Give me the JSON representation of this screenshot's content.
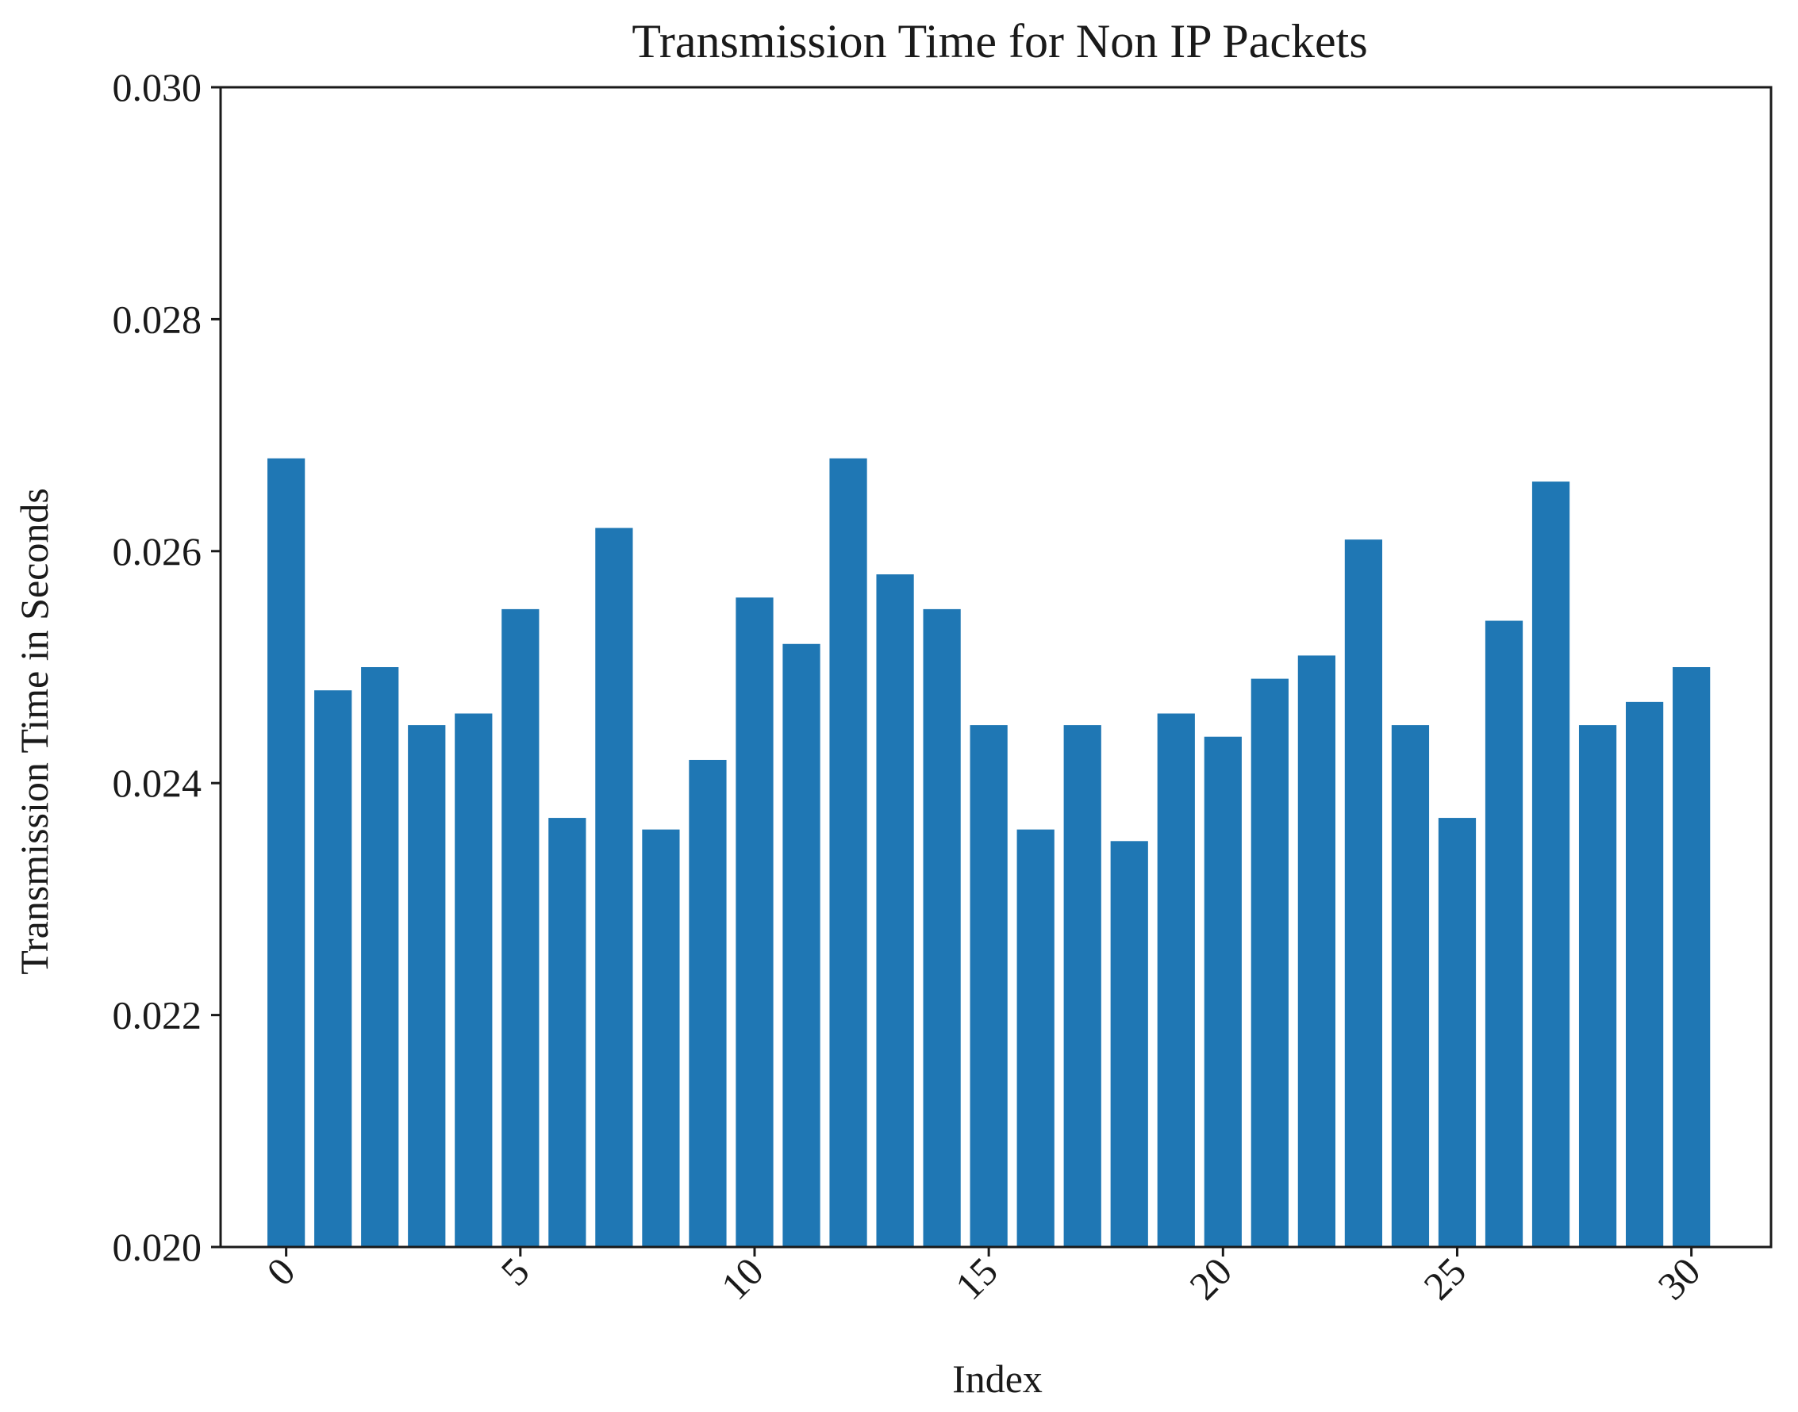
{
  "chart_data": {
    "type": "bar",
    "title": "Transmission Time for Non IP Packets",
    "xlabel": "Index",
    "ylabel": "Transmission Time in Seconds",
    "x": [
      0,
      1,
      2,
      3,
      4,
      5,
      6,
      7,
      8,
      9,
      10,
      11,
      12,
      13,
      14,
      15,
      16,
      17,
      18,
      19,
      20,
      21,
      22,
      23,
      24,
      25,
      26,
      27,
      28,
      29,
      30
    ],
    "values": [
      0.0268,
      0.0248,
      0.025,
      0.0245,
      0.0246,
      0.0255,
      0.0237,
      0.0262,
      0.0236,
      0.0242,
      0.0256,
      0.0252,
      0.0268,
      0.0258,
      0.0255,
      0.0245,
      0.0236,
      0.0245,
      0.0235,
      0.0246,
      0.0244,
      0.0249,
      0.0251,
      0.0261,
      0.0245,
      0.0237,
      0.0254,
      0.0266,
      0.0245,
      0.0247,
      0.025
    ],
    "ylim": [
      0.02,
      0.03
    ],
    "xlim": [
      -1.4,
      31.7
    ],
    "yticks": [
      0.02,
      0.022,
      0.024,
      0.026,
      0.028,
      0.03
    ],
    "ytick_labels": [
      "0.020",
      "0.022",
      "0.024",
      "0.026",
      "0.028",
      "0.030"
    ],
    "xticks": [
      0,
      5,
      10,
      15,
      20,
      25,
      30
    ],
    "xtick_labels": [
      "0",
      "5",
      "10",
      "15",
      "20",
      "25",
      "30"
    ],
    "grid": false,
    "bar_color": "#1f77b4",
    "axis_color": "#1a1a1a"
  }
}
